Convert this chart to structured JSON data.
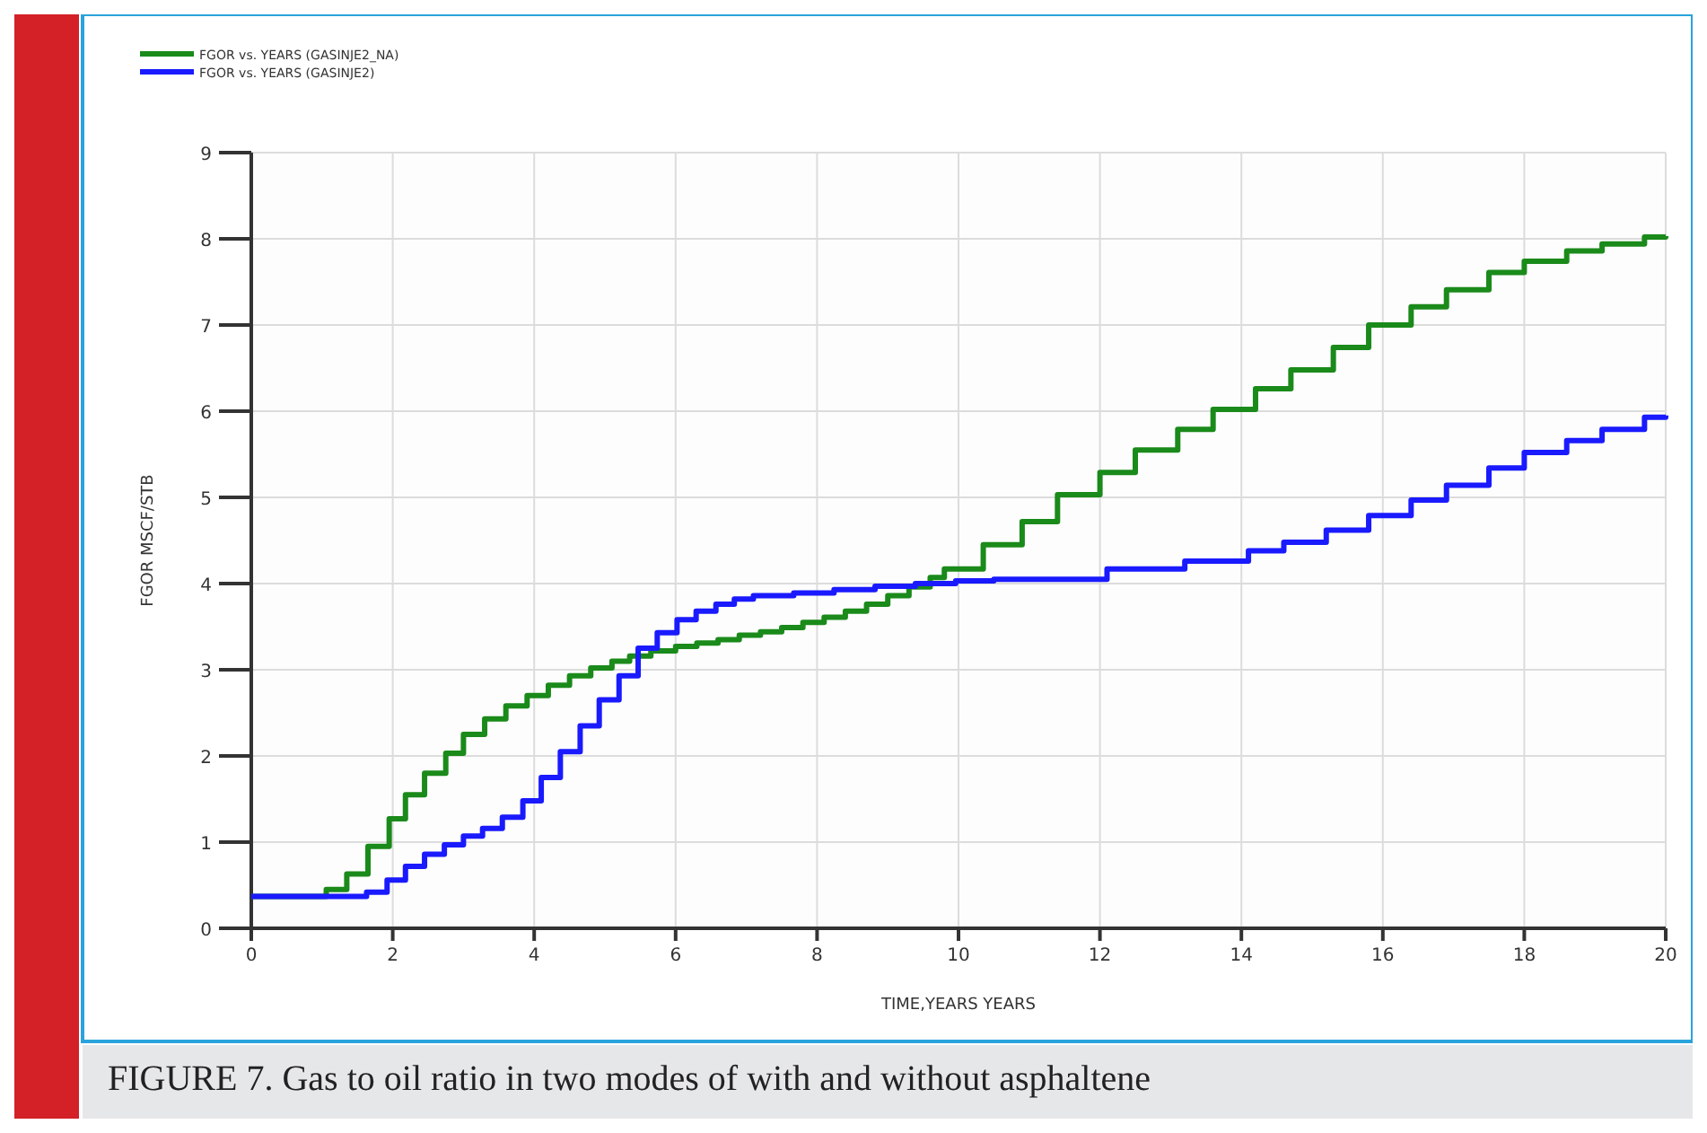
{
  "chart_data": {
    "type": "step",
    "xlabel": "TIME,YEARS   YEARS",
    "ylabel": "FGOR   MSCF/STB",
    "xlim": [
      0,
      20
    ],
    "ylim": [
      0,
      9
    ],
    "xticks": [
      0,
      2,
      4,
      6,
      8,
      10,
      12,
      14,
      16,
      18,
      20
    ],
    "yticks": [
      0,
      1,
      2,
      3,
      4,
      5,
      6,
      7,
      8,
      9
    ],
    "grid": true,
    "legend": "top left",
    "line_style": "solid",
    "marker": "none",
    "annotations": [
      "FIGURE 7. Gas to oil ratio in two modes of with and without asphaltene"
    ],
    "series": [
      {
        "name": "FGOR vs. YEARS (GASINJE2_NA)",
        "color": "#1a8a1a",
        "x": [
          0,
          1.06,
          1.35,
          1.65,
          1.95,
          2.18,
          2.45,
          2.75,
          3.0,
          3.3,
          3.6,
          3.9,
          4.2,
          4.5,
          4.8,
          5.1,
          5.35,
          5.65,
          6.0,
          6.3,
          6.6,
          6.9,
          7.2,
          7.5,
          7.8,
          8.1,
          8.4,
          8.7,
          9.0,
          9.3,
          9.6,
          9.8,
          10.35,
          10.9,
          11.4,
          12.0,
          12.5,
          13.1,
          13.6,
          14.2,
          14.7,
          15.3,
          15.8,
          16.4,
          16.9,
          17.5,
          18.0,
          18.6,
          19.1,
          19.7,
          20
        ],
        "values": [
          0.37,
          0.45,
          0.63,
          0.95,
          1.27,
          1.55,
          1.8,
          2.03,
          2.25,
          2.43,
          2.58,
          2.7,
          2.82,
          2.93,
          3.02,
          3.1,
          3.16,
          3.22,
          3.27,
          3.31,
          3.35,
          3.4,
          3.44,
          3.49,
          3.55,
          3.61,
          3.68,
          3.76,
          3.86,
          3.96,
          4.07,
          4.17,
          4.45,
          4.72,
          5.03,
          5.29,
          5.55,
          5.79,
          6.02,
          6.26,
          6.48,
          6.74,
          7.0,
          7.21,
          7.41,
          7.61,
          7.74,
          7.86,
          7.94,
          8.02,
          8.03
        ]
      },
      {
        "name": "FGOR vs. YEARS (GASINJE2)",
        "color": "#1a1aff",
        "x": [
          0,
          1.63,
          1.92,
          2.18,
          2.45,
          2.73,
          3.0,
          3.27,
          3.55,
          3.84,
          4.1,
          4.37,
          4.65,
          4.92,
          5.2,
          5.47,
          5.74,
          6.02,
          6.29,
          6.57,
          6.83,
          7.1,
          7.67,
          8.24,
          8.82,
          9.39,
          9.96,
          10.5,
          12.1,
          13.2,
          14.1,
          14.6,
          15.2,
          15.8,
          16.4,
          16.9,
          17.5,
          18.0,
          18.6,
          19.1,
          19.7,
          20
        ],
        "values": [
          0.37,
          0.42,
          0.56,
          0.72,
          0.86,
          0.97,
          1.07,
          1.16,
          1.29,
          1.48,
          1.75,
          2.05,
          2.35,
          2.65,
          2.93,
          3.25,
          3.43,
          3.58,
          3.68,
          3.76,
          3.82,
          3.86,
          3.89,
          3.93,
          3.97,
          4.0,
          4.03,
          4.05,
          4.17,
          4.26,
          4.38,
          4.48,
          4.62,
          4.79,
          4.97,
          5.14,
          5.34,
          5.52,
          5.66,
          5.79,
          5.93,
          5.95
        ]
      }
    ]
  }
}
